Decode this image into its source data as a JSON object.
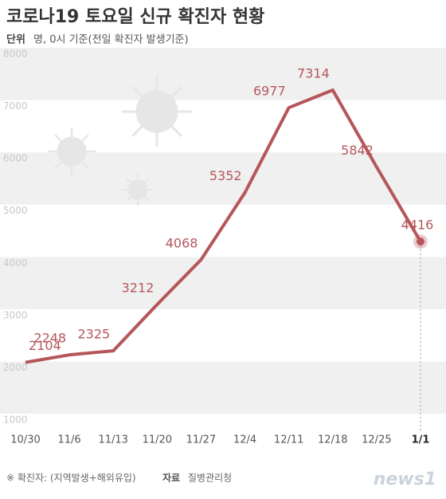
{
  "chart_data": {
    "type": "line",
    "title": "코로나19 토요일 신규 확진자 현황",
    "subtitle_label": "단위",
    "subtitle": "명, 0시 기준(전일 확진자 발생기준)",
    "categories": [
      "10/30",
      "11/6",
      "11/13",
      "11/20",
      "11/27",
      "12/4",
      "12/11",
      "12/18",
      "12/25",
      "1/1"
    ],
    "series": [
      {
        "name": "신규 확진자",
        "color": "#b5565a",
        "values": [
          2104,
          2248,
          2325,
          3212,
          4068,
          5352,
          6977,
          7314,
          5842,
          4416
        ]
      }
    ],
    "ylim": [
      1000,
      8000
    ],
    "yticks": [
      1000,
      2000,
      3000,
      4000,
      5000,
      6000,
      7000,
      8000
    ],
    "grid": true,
    "footnote": "※ 확진자: (지역발생+해외유입)",
    "source_label": "자료",
    "source": "질병관리청",
    "logo": "news1"
  }
}
